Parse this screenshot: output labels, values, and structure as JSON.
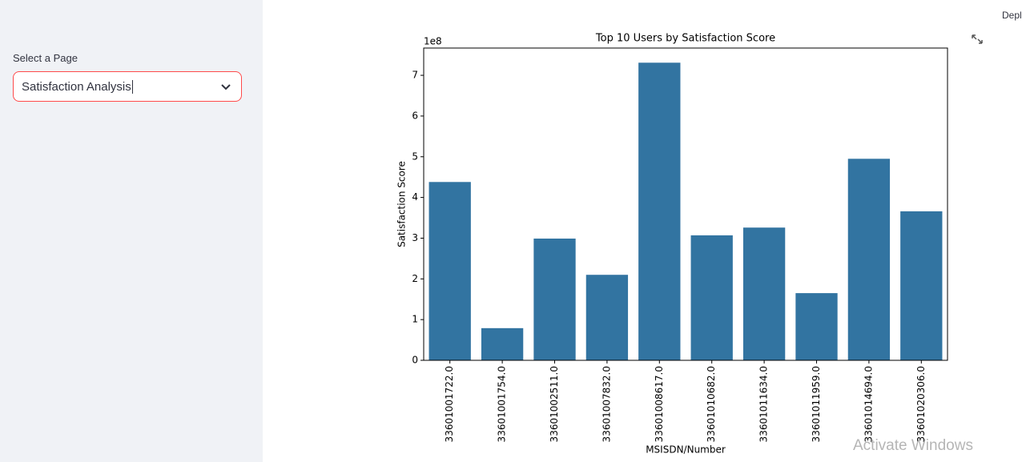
{
  "sidebar": {
    "label": "Select a Page",
    "selected": "Satisfaction Analysis"
  },
  "header": {
    "deploy": "Depl"
  },
  "watermark": "Activate Windows",
  "chart_data": {
    "type": "bar",
    "title": "Top 10 Users by Satisfaction Score",
    "x_label": "MSISDN/Number",
    "y_label": "Satisfaction Score",
    "y_offset_label": "1e8",
    "categories": [
      "33601001722.0",
      "33601001754.0",
      "33601002511.0",
      "33601007832.0",
      "33601008617.0",
      "33601010682.0",
      "33601011634.0",
      "33601011959.0",
      "33601014694.0",
      "33601020306.0"
    ],
    "values": [
      4.38,
      0.79,
      2.99,
      2.1,
      7.31,
      3.07,
      3.26,
      1.65,
      4.95,
      3.66
    ],
    "color": "#3274a1",
    "ylim": [
      0,
      7.67
    ],
    "yticks": [
      0,
      1,
      2,
      3,
      4,
      5,
      6,
      7
    ],
    "grid": false
  }
}
